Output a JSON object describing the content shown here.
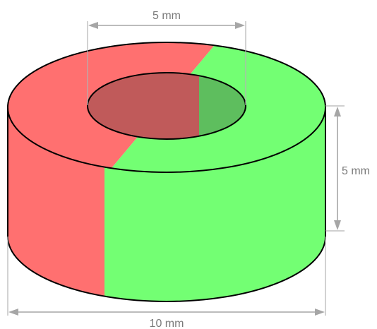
{
  "dimensions": {
    "inner_diameter": "5 mm",
    "height": "5 mm",
    "outer_diameter": "10 mm"
  },
  "colors": {
    "north_pole": "#ff7070",
    "south_pole": "#73ff73",
    "hole_north": "#c05a5a",
    "hole_south": "#5ebe5e",
    "outline": "#000000",
    "dimension": "#a6a6a6"
  }
}
